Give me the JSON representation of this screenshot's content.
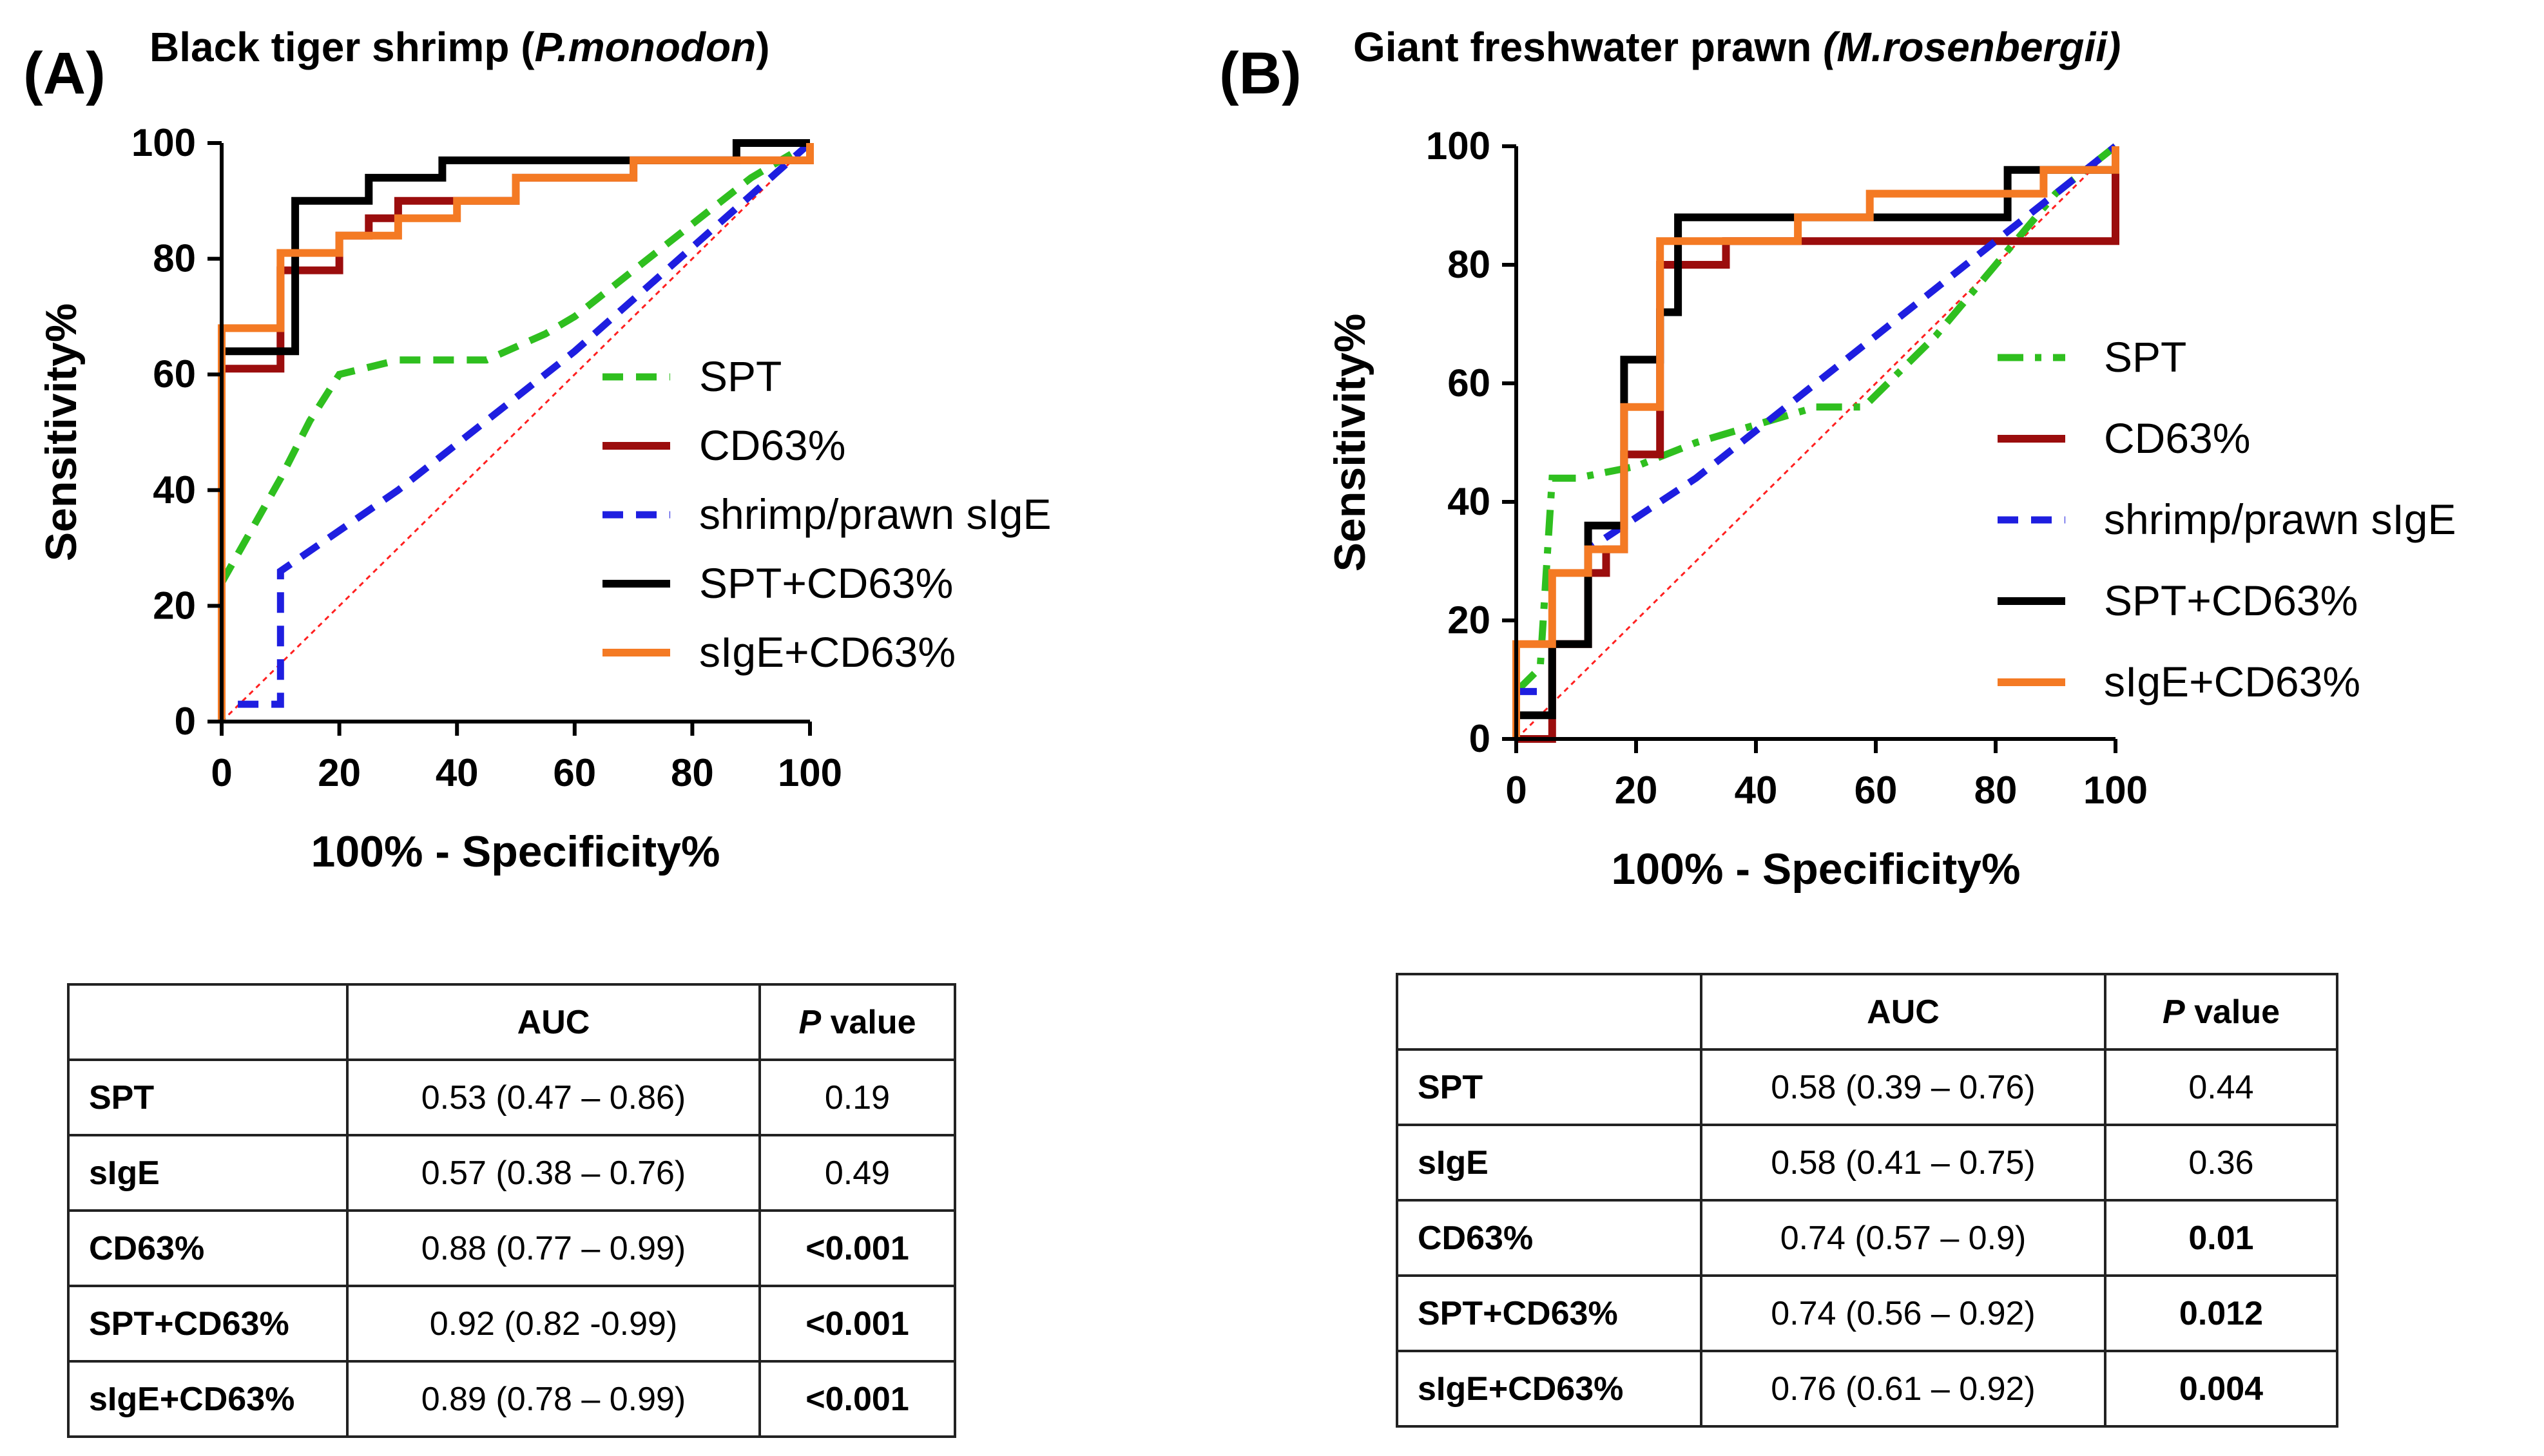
{
  "panels": [
    {
      "label": "(A)",
      "title_plain": "Black tiger shrimp (",
      "title_italic": "P.monodon",
      "title_close": ")"
    },
    {
      "label": "(B)",
      "title_plain": "Giant freshwater prawn ",
      "title_italic": "(M.rosenbergii)",
      "title_close": ""
    }
  ],
  "colors": {
    "SPT": "#2fbf1f",
    "CD63%": "#9b0d0d",
    "shrimp/prawn sIgE": "#1e1ee0",
    "SPT+CD63%": "#000000",
    "sIgE+CD63%": "#f47a24",
    "reference": "#ff2020"
  },
  "chart_data": [
    {
      "type": "line",
      "title": "Black tiger shrimp (P.monodon)",
      "xlabel": "100% - Specificity%",
      "ylabel": "Sensitivity%",
      "xlim": [
        0,
        100
      ],
      "ylim": [
        0,
        100
      ],
      "xticks": [
        0,
        20,
        40,
        60,
        80,
        100
      ],
      "yticks": [
        0,
        20,
        40,
        60,
        80,
        100
      ],
      "reference_line": [
        [
          0,
          0
        ],
        [
          100,
          100
        ]
      ],
      "legend": [
        "SPT",
        "CD63%",
        "shrimp/prawn sIgE",
        "SPT+CD63%",
        "sIgE+CD63%"
      ],
      "series": [
        {
          "name": "SPT",
          "style": "dashed",
          "step": false,
          "points": [
            [
              0,
              24
            ],
            [
              5,
              33
            ],
            [
              10,
              42
            ],
            [
              15,
              52
            ],
            [
              20,
              60
            ],
            [
              30,
              62.5
            ],
            [
              45,
              62.5
            ],
            [
              55,
              67
            ],
            [
              60,
              70
            ],
            [
              70,
              78
            ],
            [
              80,
              86
            ],
            [
              90,
              94
            ],
            [
              100,
              100
            ]
          ]
        },
        {
          "name": "CD63%",
          "style": "solid",
          "step": true,
          "points": [
            [
              0,
              0
            ],
            [
              0,
              61
            ],
            [
              10,
              61
            ],
            [
              10,
              78
            ],
            [
              20,
              78
            ],
            [
              20,
              84
            ],
            [
              25,
              84
            ],
            [
              25,
              87
            ],
            [
              30,
              87
            ],
            [
              30,
              90
            ],
            [
              50,
              90
            ],
            [
              50,
              94
            ],
            [
              70,
              94
            ],
            [
              70,
              97
            ],
            [
              100,
              97
            ],
            [
              100,
              100
            ]
          ]
        },
        {
          "name": "shrimp/prawn sIgE",
          "style": "dashed",
          "step": false,
          "points": [
            [
              0,
              0
            ],
            [
              0,
              3
            ],
            [
              10,
              3
            ],
            [
              10,
              26
            ],
            [
              20,
              33
            ],
            [
              30,
              40
            ],
            [
              40,
              48
            ],
            [
              50,
              56
            ],
            [
              60,
              64
            ],
            [
              70,
              73
            ],
            [
              80,
              82
            ],
            [
              90,
              91
            ],
            [
              100,
              100
            ]
          ]
        },
        {
          "name": "SPT+CD63%",
          "style": "solid",
          "step": true,
          "points": [
            [
              0,
              0
            ],
            [
              0,
              64
            ],
            [
              12.5,
              64
            ],
            [
              12.5,
              90
            ],
            [
              25,
              90
            ],
            [
              25,
              94
            ],
            [
              37.5,
              94
            ],
            [
              37.5,
              97
            ],
            [
              87.5,
              97
            ],
            [
              87.5,
              100
            ],
            [
              100,
              100
            ]
          ]
        },
        {
          "name": "sIgE+CD63%",
          "style": "solid",
          "step": true,
          "points": [
            [
              0,
              0
            ],
            [
              0,
              68
            ],
            [
              10,
              68
            ],
            [
              10,
              81
            ],
            [
              20,
              81
            ],
            [
              20,
              84
            ],
            [
              30,
              84
            ],
            [
              30,
              87
            ],
            [
              40,
              87
            ],
            [
              40,
              90
            ],
            [
              50,
              90
            ],
            [
              50,
              94
            ],
            [
              70,
              94
            ],
            [
              70,
              97
            ],
            [
              100,
              97
            ],
            [
              100,
              100
            ]
          ]
        }
      ]
    },
    {
      "type": "line",
      "title": "Giant freshwater prawn (M.rosenbergii)",
      "xlabel": "100% - Specificity%",
      "ylabel": "Sensitivity%",
      "xlim": [
        0,
        100
      ],
      "ylim": [
        0,
        100
      ],
      "xticks": [
        0,
        20,
        40,
        60,
        80,
        100
      ],
      "yticks": [
        0,
        20,
        40,
        60,
        80,
        100
      ],
      "reference_line": [
        [
          0,
          0
        ],
        [
          100,
          100
        ]
      ],
      "legend": [
        "SPT",
        "CD63%",
        "shrimp/prawn sIgE",
        "SPT+CD63%",
        "sIgE+CD63%"
      ],
      "series": [
        {
          "name": "SPT",
          "style": "dashdot",
          "step": false,
          "points": [
            [
              0,
              8
            ],
            [
              4,
              12
            ],
            [
              6,
              44
            ],
            [
              10,
              44
            ],
            [
              20,
              46
            ],
            [
              30,
              50
            ],
            [
              40,
              53
            ],
            [
              50,
              56
            ],
            [
              58,
              56
            ],
            [
              70,
              68
            ],
            [
              80,
              80
            ],
            [
              90,
              92
            ],
            [
              100,
              100
            ]
          ]
        },
        {
          "name": "CD63%",
          "style": "solid",
          "step": true,
          "points": [
            [
              0,
              0
            ],
            [
              6,
              0
            ],
            [
              6,
              16
            ],
            [
              12,
              16
            ],
            [
              12,
              28
            ],
            [
              15,
              28
            ],
            [
              15,
              32
            ],
            [
              18,
              32
            ],
            [
              18,
              48
            ],
            [
              24,
              48
            ],
            [
              24,
              80
            ],
            [
              35,
              80
            ],
            [
              35,
              84
            ],
            [
              100,
              84
            ],
            [
              100,
              100
            ]
          ]
        },
        {
          "name": "shrimp/prawn sIgE",
          "style": "dashed",
          "step": false,
          "points": [
            [
              0,
              8
            ],
            [
              6,
              8
            ],
            [
              6,
              16
            ],
            [
              12,
              16
            ],
            [
              12,
              32
            ],
            [
              18,
              36
            ],
            [
              30,
              44
            ],
            [
              40,
              52
            ],
            [
              50,
              60
            ],
            [
              60,
              68
            ],
            [
              70,
              76
            ],
            [
              80,
              84
            ],
            [
              90,
              92
            ],
            [
              100,
              100
            ]
          ]
        },
        {
          "name": "SPT+CD63%",
          "style": "solid",
          "step": true,
          "points": [
            [
              0,
              0
            ],
            [
              0,
              4
            ],
            [
              6,
              4
            ],
            [
              6,
              16
            ],
            [
              12,
              16
            ],
            [
              12,
              36
            ],
            [
              18,
              36
            ],
            [
              18,
              64
            ],
            [
              24,
              64
            ],
            [
              24,
              72
            ],
            [
              27,
              72
            ],
            [
              27,
              88
            ],
            [
              53,
              88
            ],
            [
              53,
              88
            ],
            [
              82,
              88
            ],
            [
              82,
              96
            ],
            [
              100,
              96
            ],
            [
              100,
              100
            ]
          ]
        },
        {
          "name": "sIgE+CD63%",
          "style": "solid",
          "step": true,
          "points": [
            [
              0,
              0
            ],
            [
              0,
              16
            ],
            [
              6,
              16
            ],
            [
              6,
              28
            ],
            [
              12,
              28
            ],
            [
              12,
              32
            ],
            [
              18,
              32
            ],
            [
              18,
              56
            ],
            [
              24,
              56
            ],
            [
              24,
              84
            ],
            [
              47,
              84
            ],
            [
              47,
              88
            ],
            [
              59,
              88
            ],
            [
              59,
              92
            ],
            [
              88,
              92
            ],
            [
              88,
              96
            ],
            [
              100,
              96
            ],
            [
              100,
              100
            ]
          ]
        }
      ]
    }
  ],
  "tables": [
    {
      "headers": [
        "",
        "AUC",
        "value"
      ],
      "header_p": "P",
      "rows": [
        {
          "name": "SPT",
          "auc": "0.53 (0.47 – 0.86)",
          "p": "0.19",
          "sig": false
        },
        {
          "name": "sIgE",
          "auc": "0.57 (0.38 – 0.76)",
          "p": "0.49",
          "sig": false
        },
        {
          "name": "CD63%",
          "auc": "0.88 (0.77 – 0.99)",
          "p": "<0.001",
          "sig": true
        },
        {
          "name": "SPT+CD63%",
          "auc": "0.92 (0.82 -0.99)",
          "p": "<0.001",
          "sig": true
        },
        {
          "name": "sIgE+CD63%",
          "auc": "0.89 (0.78 – 0.99)",
          "p": "<0.001",
          "sig": true
        }
      ]
    },
    {
      "headers": [
        "",
        "AUC",
        "value"
      ],
      "header_p": "P",
      "rows": [
        {
          "name": "SPT",
          "auc": "0.58 (0.39 – 0.76)",
          "p": "0.44",
          "sig": false
        },
        {
          "name": "sIgE",
          "auc": "0.58 (0.41 – 0.75)",
          "p": "0.36",
          "sig": false
        },
        {
          "name": "CD63%",
          "auc": "0.74 (0.57 – 0.9)",
          "p": "0.01",
          "sig": true
        },
        {
          "name": "SPT+CD63%",
          "auc": "0.74 (0.56 – 0.92)",
          "p": "0.012",
          "sig": true
        },
        {
          "name": "sIgE+CD63%",
          "auc": "0.76 (0.61 – 0.92)",
          "p": "0.004",
          "sig": true
        }
      ]
    }
  ]
}
